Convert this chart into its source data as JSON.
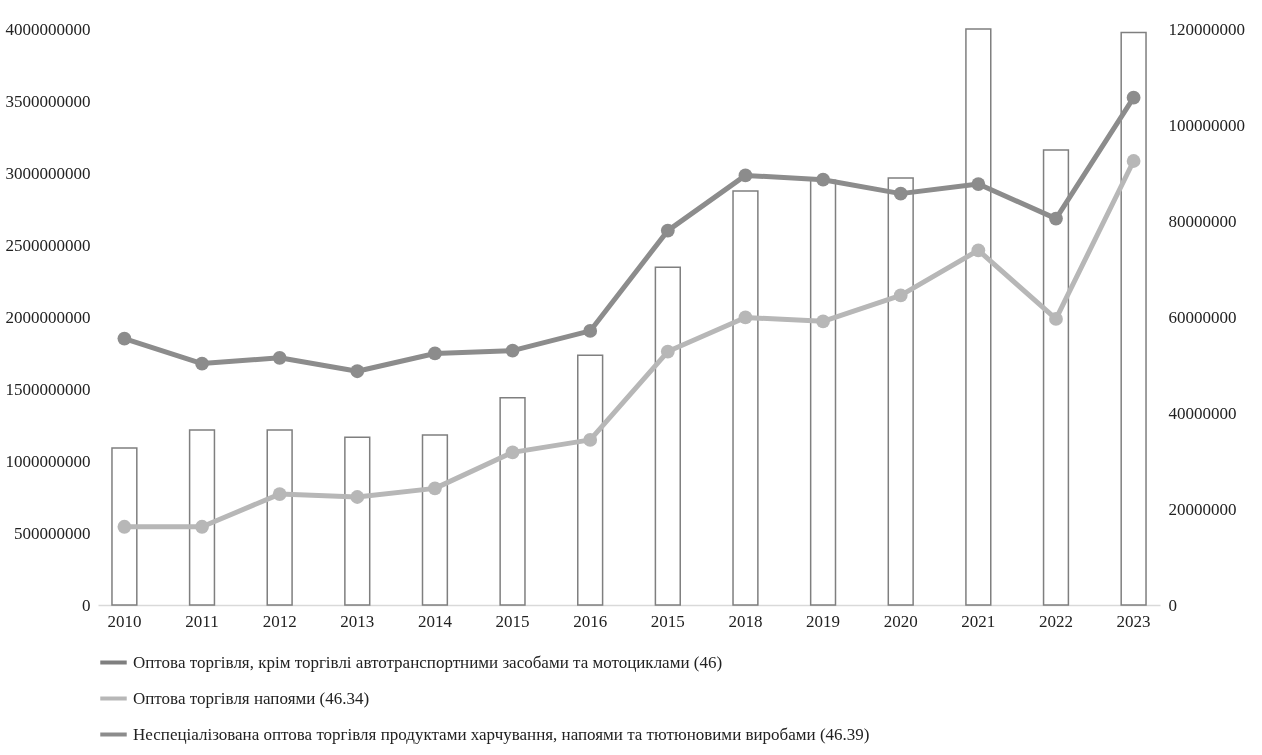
{
  "chart_data": {
    "type": "bar",
    "categories": [
      "2010",
      "2011",
      "2012",
      "2013",
      "2014",
      "2015",
      "2016",
      "2015",
      "2018",
      "2019",
      "2020",
      "2021",
      "2022",
      "2023"
    ],
    "series": [
      {
        "name": "Оптова торгівля, крім торгівлі автотранспортними засобами та мотоциклами (46)",
        "color": "#7f7f7f",
        "values": [
          1090000000,
          1215000000,
          1215000000,
          1165000000,
          1180000000,
          1440000000,
          1735000000,
          2345000000,
          2875000000,
          2950000000,
          2965000000,
          4000000000,
          3160000000,
          3975000000
        ]
      },
      {
        "name": "Оптова торгівля напоями (46.34)",
        "type": "line",
        "axis": "y2",
        "color": "#b7b7b7",
        "values": [
          16300000,
          16300000,
          23100000,
          22500000,
          24300000,
          31800000,
          34400000,
          52800000,
          59900000,
          59100000,
          64500000,
          73900000,
          59600000,
          92500000
        ]
      },
      {
        "name": "Неспеціалізована оптова торгівля продуктами харчування, напоями та тютюновими виробами (46.39)",
        "type": "line",
        "axis": "y2",
        "color": "#8c8c8c",
        "values": [
          55500000,
          50300000,
          51500000,
          48700000,
          52400000,
          53000000,
          57100000,
          78000000,
          89500000,
          88600000,
          85700000,
          87700000,
          80500000,
          105700000
        ]
      }
    ],
    "ylim": [
      0,
      4000000000
    ],
    "yticks": [
      0,
      500000000,
      1000000000,
      1500000000,
      2000000000,
      2500000000,
      3000000000,
      3500000000,
      4000000000
    ],
    "y2lim": [
      0,
      120000000
    ],
    "y2ticks": [
      0,
      20000000,
      40000000,
      60000000,
      80000000,
      100000000,
      120000000
    ],
    "grid": false,
    "legend": "bottom",
    "marker": "circle",
    "line_style": "solid"
  }
}
